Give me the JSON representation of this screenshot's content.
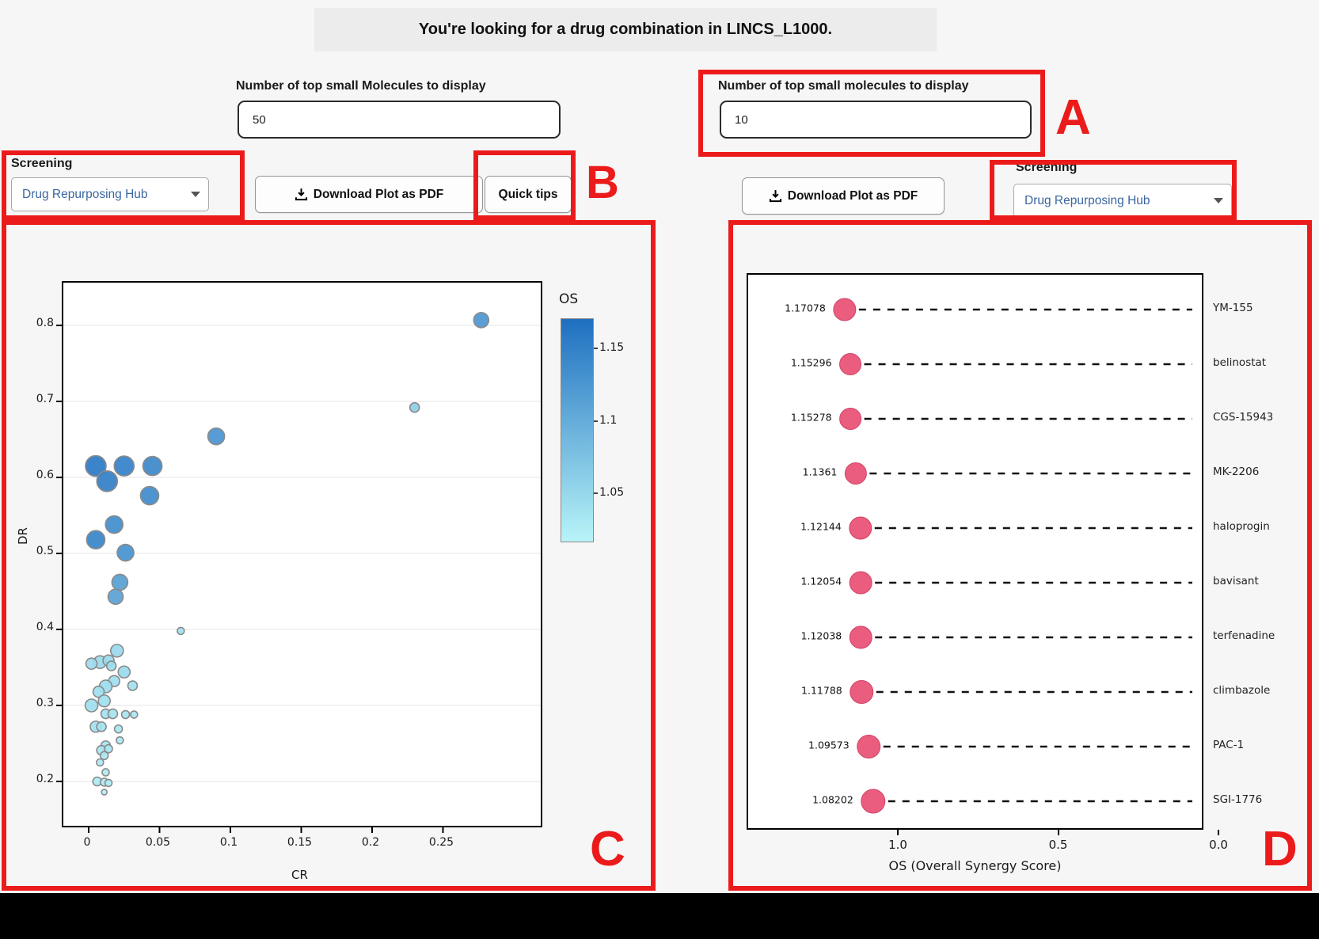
{
  "title": "You're looking for a drug combination in LINCS_L1000.",
  "left_controls": {
    "molecules_label": "Number of top small Molecules to display",
    "molecules_value": "50",
    "screening_label": "Screening",
    "screening_value": "Drug Repurposing Hub",
    "download_button": "Download Plot as PDF",
    "quick_tips_button": "Quick tips"
  },
  "right_controls": {
    "molecules_label": "Number of top small molecules to display",
    "molecules_value": "10",
    "screening_label": "Screening",
    "screening_value": "Drug Repurposing Hub",
    "download_button": "Download Plot as PDF"
  },
  "annotations": {
    "a": "A",
    "b": "B",
    "c": "C",
    "d": "D",
    "box_color": "#ec1b1b"
  },
  "chart_data": [
    {
      "id": "scatter",
      "type": "scatter",
      "xlabel": "CR",
      "ylabel": "DR",
      "xticks": [
        "0",
        "0.05",
        "0.1",
        "0.15",
        "0.2",
        "0.25"
      ],
      "xtick_values": [
        0,
        0.05,
        0.1,
        0.15,
        0.2,
        0.25
      ],
      "yticks": [
        "0.8",
        "0.7",
        "0.6",
        "0.5",
        "0.4",
        "0.3",
        "0.2"
      ],
      "ytick_values": [
        0.8,
        0.7,
        0.6,
        0.5,
        0.4,
        0.3,
        0.2
      ],
      "xlim": [
        -0.018,
        0.321
      ],
      "ylim": [
        0.143,
        0.872
      ],
      "grid": "horizontal",
      "colorbar": {
        "title": "OS",
        "ticks": [
          "1.15",
          "1.1",
          "1.05"
        ],
        "tick_values": [
          1.15,
          1.1,
          1.05
        ],
        "domain": [
          1.016,
          1.171
        ],
        "top_color": "#1e6fc0",
        "bottom_color": "#b8f4f8"
      },
      "points": [
        {
          "x": 0.005,
          "y": 0.615,
          "os": 1.158,
          "r": 13
        },
        {
          "x": 0.025,
          "y": 0.615,
          "os": 1.15,
          "r": 12.5
        },
        {
          "x": 0.045,
          "y": 0.615,
          "os": 1.142,
          "r": 12
        },
        {
          "x": 0.013,
          "y": 0.595,
          "os": 1.152,
          "r": 13
        },
        {
          "x": 0.043,
          "y": 0.576,
          "os": 1.138,
          "r": 11.5
        },
        {
          "x": 0.018,
          "y": 0.538,
          "os": 1.136,
          "r": 11
        },
        {
          "x": 0.005,
          "y": 0.518,
          "os": 1.146,
          "r": 11.5
        },
        {
          "x": 0.026,
          "y": 0.501,
          "os": 1.13,
          "r": 10.5
        },
        {
          "x": 0.09,
          "y": 0.654,
          "os": 1.128,
          "r": 10.5
        },
        {
          "x": 0.022,
          "y": 0.462,
          "os": 1.115,
          "r": 10
        },
        {
          "x": 0.019,
          "y": 0.443,
          "os": 1.112,
          "r": 9.5
        },
        {
          "x": 0.277,
          "y": 0.807,
          "os": 1.125,
          "r": 9.5
        },
        {
          "x": 0.23,
          "y": 0.692,
          "os": 1.06,
          "r": 6
        },
        {
          "x": 0.065,
          "y": 0.398,
          "os": 1.04,
          "r": 4.5
        },
        {
          "x": 0.02,
          "y": 0.372,
          "os": 1.048,
          "r": 8
        },
        {
          "x": 0.008,
          "y": 0.357,
          "os": 1.046,
          "r": 8
        },
        {
          "x": 0.002,
          "y": 0.355,
          "os": 1.044,
          "r": 7
        },
        {
          "x": 0.014,
          "y": 0.359,
          "os": 1.045,
          "r": 7
        },
        {
          "x": 0.016,
          "y": 0.352,
          "os": 1.043,
          "r": 6
        },
        {
          "x": 0.025,
          "y": 0.344,
          "os": 1.046,
          "r": 7.5
        },
        {
          "x": 0.018,
          "y": 0.332,
          "os": 1.042,
          "r": 7
        },
        {
          "x": 0.012,
          "y": 0.325,
          "os": 1.044,
          "r": 8
        },
        {
          "x": 0.007,
          "y": 0.318,
          "os": 1.04,
          "r": 7
        },
        {
          "x": 0.031,
          "y": 0.326,
          "os": 1.038,
          "r": 6
        },
        {
          "x": 0.011,
          "y": 0.306,
          "os": 1.04,
          "r": 7.5
        },
        {
          "x": 0.002,
          "y": 0.3,
          "os": 1.042,
          "r": 8
        },
        {
          "x": 0.012,
          "y": 0.289,
          "os": 1.036,
          "r": 6
        },
        {
          "x": 0.017,
          "y": 0.289,
          "os": 1.035,
          "r": 6
        },
        {
          "x": 0.026,
          "y": 0.288,
          "os": 1.034,
          "r": 5
        },
        {
          "x": 0.032,
          "y": 0.288,
          "os": 1.032,
          "r": 4.5
        },
        {
          "x": 0.005,
          "y": 0.272,
          "os": 1.038,
          "r": 7
        },
        {
          "x": 0.009,
          "y": 0.272,
          "os": 1.036,
          "r": 6
        },
        {
          "x": 0.021,
          "y": 0.269,
          "os": 1.032,
          "r": 5
        },
        {
          "x": 0.022,
          "y": 0.254,
          "os": 1.03,
          "r": 4.5
        },
        {
          "x": 0.012,
          "y": 0.247,
          "os": 1.034,
          "r": 6
        },
        {
          "x": 0.009,
          "y": 0.241,
          "os": 1.032,
          "r": 6
        },
        {
          "x": 0.014,
          "y": 0.243,
          "os": 1.03,
          "r": 5
        },
        {
          "x": 0.011,
          "y": 0.234,
          "os": 1.03,
          "r": 5
        },
        {
          "x": 0.008,
          "y": 0.225,
          "os": 1.028,
          "r": 4.5
        },
        {
          "x": 0.012,
          "y": 0.212,
          "os": 1.026,
          "r": 4.5
        },
        {
          "x": 0.006,
          "y": 0.2,
          "os": 1.028,
          "r": 5.5
        },
        {
          "x": 0.011,
          "y": 0.199,
          "os": 1.026,
          "r": 5
        },
        {
          "x": 0.014,
          "y": 0.198,
          "os": 1.024,
          "r": 4.5
        },
        {
          "x": 0.011,
          "y": 0.186,
          "os": 1.022,
          "r": 3.5
        }
      ]
    },
    {
      "id": "lollipop",
      "type": "lollipop",
      "xlabel": "OS (Overall Synergy Score)",
      "xticks": [
        "1.0",
        "0.5",
        "0.0"
      ],
      "xtick_values": [
        1.0,
        0.5,
        0.0
      ],
      "axis_reversed": true,
      "dot_color": "#ea5d7e",
      "dot_stroke": "#d14368",
      "items": [
        {
          "name": "YM-155",
          "label": "1.17078",
          "value": 1.17078,
          "r": 14
        },
        {
          "name": "belinostat",
          "label": "1.15296",
          "value": 1.15296,
          "r": 13.5
        },
        {
          "name": "CGS-15943",
          "label": "1.15278",
          "value": 1.15278,
          "r": 13.5
        },
        {
          "name": "MK-2206",
          "label": "1.1361",
          "value": 1.1361,
          "r": 13.5
        },
        {
          "name": "haloprogin",
          "label": "1.12144",
          "value": 1.12144,
          "r": 14
        },
        {
          "name": "bavisant",
          "label": "1.12054",
          "value": 1.12054,
          "r": 14
        },
        {
          "name": "terfenadine",
          "label": "1.12038",
          "value": 1.12038,
          "r": 14
        },
        {
          "name": "climbazole",
          "label": "1.11788",
          "value": 1.11788,
          "r": 14.5
        },
        {
          "name": "PAC-1",
          "label": "1.09573",
          "value": 1.09573,
          "r": 14.5
        },
        {
          "name": "SGI-1776",
          "label": "1.08202",
          "value": 1.08202,
          "r": 15
        }
      ]
    }
  ]
}
